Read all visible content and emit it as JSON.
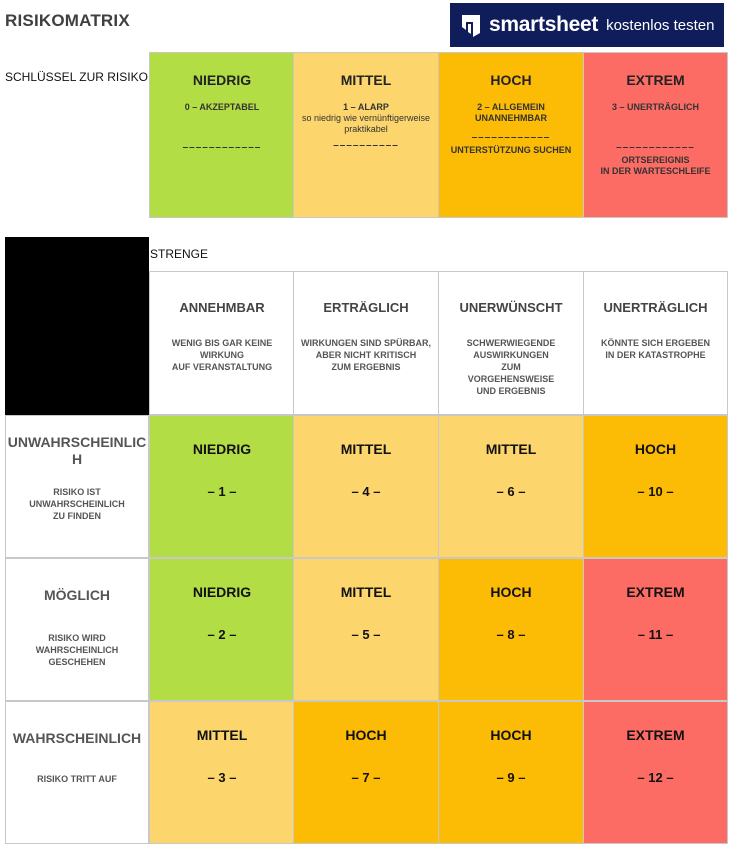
{
  "title": "RISIKOMATRIX",
  "banner": {
    "brand": "smartsheet",
    "cta": "kostenlos testen"
  },
  "colors": {
    "niedrig": "#b3dd45",
    "mittel": "#fcd66c",
    "hoch": "#fcbb04",
    "extrem": "#fc6c64",
    "banner": "#0f1e5a"
  },
  "key": {
    "label": "SCHLÜSSEL ZUR RISIKO",
    "cells": [
      {
        "head": "NIEDRIG",
        "desc1": "0 – AKZEPTABEL",
        "desc2": "",
        "dash": "––––––––––––",
        "foot1": "",
        "foot2": ""
      },
      {
        "head": "MITTEL",
        "desc1": "1 – ALARP",
        "desc2": "so niedrig wie vernünftigerweise praktikabel",
        "dash": "––––––––––",
        "foot1": "",
        "foot2": ""
      },
      {
        "head": "HOCH",
        "desc1": "2 – ALLGEMEIN",
        "desc2": "UNANNEHMBAR",
        "dash": "––––––––––––",
        "foot1": "UNTERSTÜTZUNG SUCHEN",
        "foot2": ""
      },
      {
        "head": "EXTREM",
        "desc1": "3 – UNERTRÄGLICH",
        "desc2": "",
        "dash": "––––––––––––",
        "foot1": "ORTSEREIGNIS",
        "foot2": "IN DER WARTESCHLEIFE"
      }
    ]
  },
  "severity": {
    "label": "STRENGE",
    "cols": [
      {
        "head": "ANNEHMBAR",
        "d1": "WENIG BIS GAR KEINE",
        "d2": "WIRKUNG",
        "d3": "AUF VERANSTALTUNG",
        "d4": "",
        "d5": ""
      },
      {
        "head": "ERTRÄGLICH",
        "d1": "WIRKUNGEN SIND SPÜRBAR,",
        "d2": "ABER NICHT KRITISCH",
        "d3": "ZUM ERGEBNIS",
        "d4": "",
        "d5": ""
      },
      {
        "head": "UNERWÜNSCHT",
        "d1": "SCHWERWIEGENDE",
        "d2": "AUSWIRKUNGEN",
        "d3": "ZUM",
        "d4": "VORGEHENSWEISE",
        "d5": "UND ERGEBNIS"
      },
      {
        "head": "UNERTRÄGLICH",
        "d1": "KÖNNTE SICH ERGEBEN",
        "d2": "IN DER KATASTROPHE",
        "d3": "",
        "d4": "",
        "d5": ""
      }
    ]
  },
  "likelihood": [
    {
      "h1": "UNWAHRSCHEINLIC",
      "h2": "H",
      "d1": "RISIKO IST",
      "d2": "UNWAHRSCHEINLICH",
      "d3": "ZU FINDEN"
    },
    {
      "h1": "MÖGLICH",
      "h2": "",
      "d1": "RISIKO WIRD",
      "d2": "WAHRSCHEINLICH",
      "d3": "GESCHEHEN"
    },
    {
      "h1": "WAHRSCHEINLICH",
      "h2": "",
      "d1": "RISIKO TRITT AUF",
      "d2": "",
      "d3": ""
    }
  ],
  "matrix": [
    [
      {
        "level": "NIEDRIG",
        "num": "– 1 –",
        "c": "niedrig"
      },
      {
        "level": "MITTEL",
        "num": "– 4 –",
        "c": "mittel"
      },
      {
        "level": "MITTEL",
        "num": "– 6 –",
        "c": "mittel"
      },
      {
        "level": "HOCH",
        "num": "– 10 –",
        "c": "hoch"
      }
    ],
    [
      {
        "level": "NIEDRIG",
        "num": "– 2 –",
        "c": "niedrig"
      },
      {
        "level": "MITTEL",
        "num": "– 5 –",
        "c": "mittel"
      },
      {
        "level": "HOCH",
        "num": "– 8 –",
        "c": "hoch"
      },
      {
        "level": "EXTREM",
        "num": "– 11 –",
        "c": "extrem"
      }
    ],
    [
      {
        "level": "MITTEL",
        "num": "– 3 –",
        "c": "mittel"
      },
      {
        "level": "HOCH",
        "num": "– 7 –",
        "c": "hoch"
      },
      {
        "level": "HOCH",
        "num": "– 9 –",
        "c": "hoch"
      },
      {
        "level": "EXTREM",
        "num": "– 12 –",
        "c": "extrem"
      }
    ]
  ]
}
